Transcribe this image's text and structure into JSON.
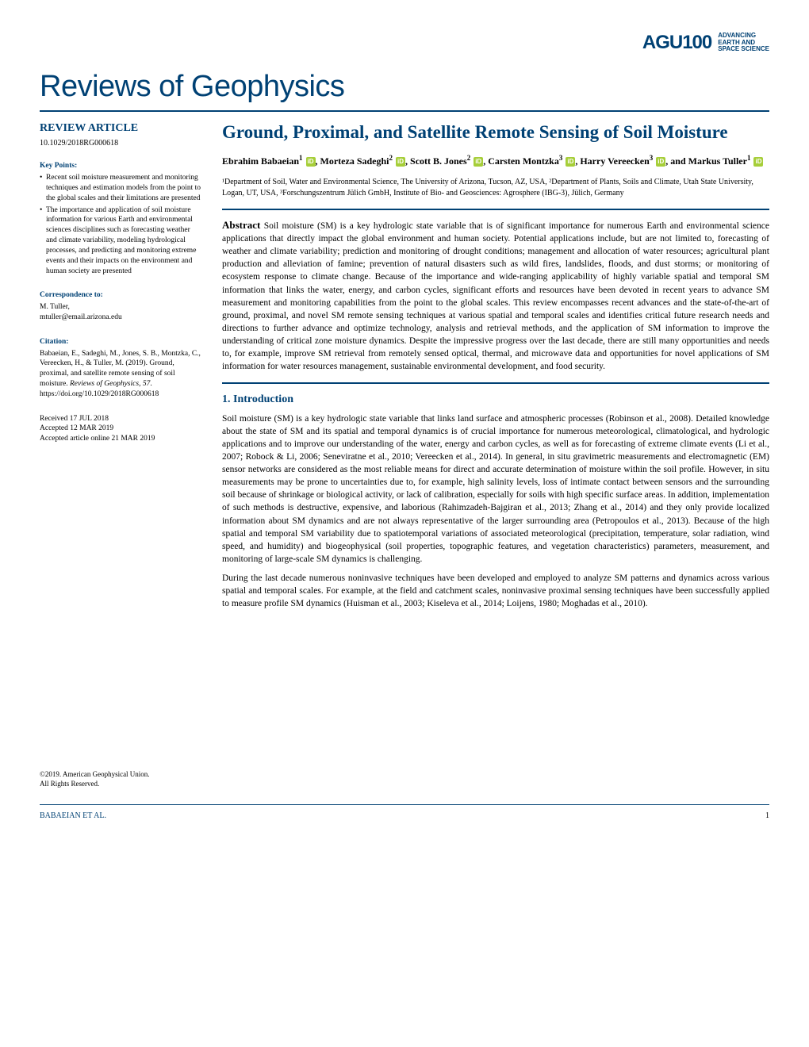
{
  "colors": {
    "primary_blue": "#004174",
    "text_black": "#000000",
    "orcid_green": "#a6ce39",
    "light_rule": "#cccccc"
  },
  "logo": {
    "brand": "AGU100",
    "tagline_line1": "ADVANCING",
    "tagline_line2": "EARTH AND",
    "tagline_line3": "SPACE SCIENCE"
  },
  "journal_title": "Reviews of Geophysics",
  "article_type": "REVIEW ARTICLE",
  "doi": "10.1029/2018RG000618",
  "key_points": {
    "heading": "Key Points:",
    "items": [
      "Recent soil moisture measurement and monitoring techniques and estimation models from the point to the global scales and their limitations are presented",
      "The importance and application of soil moisture information for various Earth and environmental sciences disciplines such as forecasting weather and climate variability, modeling hydrological processes, and predicting and monitoring extreme events and their impacts on the environment and human society are presented"
    ]
  },
  "correspondence": {
    "heading": "Correspondence to:",
    "name": "M. Tuller,",
    "email": "mtuller@email.arizona.edu"
  },
  "citation": {
    "heading": "Citation:",
    "text_part1": "Babaeian, E., Sadeghi, M., Jones, S. B., Montzka, C., Vereecken, H., & Tuller, M. (2019). Ground, proximal, and satellite remote sensing of soil moisture. ",
    "journal_italic": "Reviews of Geophysics",
    "text_part2": ", ",
    "volume_italic": "57",
    "text_part3": ". https://doi.org/10.1029/2018RG000618"
  },
  "dates": {
    "received": "Received 17 JUL 2018",
    "accepted": "Accepted 12 MAR 2019",
    "online": "Accepted article online 21 MAR 2019"
  },
  "copyright": {
    "line1": "©2019. American Geophysical Union.",
    "line2": "All Rights Reserved."
  },
  "article_title": "Ground, Proximal, and Satellite Remote Sensing of Soil Moisture",
  "authors_html": "Ebrahim Babaeian|1|orcid|, Morteza Sadeghi|2|orcid|, Scott B. Jones|2|orcid|, Carsten Montzka|3|orcid|, Harry Vereecken|3|orcid|, and Markus Tuller|1|orcid",
  "authors": [
    {
      "name": "Ebrahim Babaeian",
      "aff": "1",
      "orcid": true,
      "sep": ", "
    },
    {
      "name": "Morteza Sadeghi",
      "aff": "2",
      "orcid": true,
      "sep": ", "
    },
    {
      "name": "Scott B. Jones",
      "aff": "2",
      "orcid": true,
      "sep": ", "
    },
    {
      "name": "Carsten Montzka",
      "aff": "3",
      "orcid": true,
      "sep": ", "
    },
    {
      "name": "Harry Vereecken",
      "aff": "3",
      "orcid": true,
      "sep": ", and "
    },
    {
      "name": "Markus Tuller",
      "aff": "1",
      "orcid": true,
      "sep": ""
    }
  ],
  "affiliations": "¹Department of Soil, Water and Environmental Science, The University of Arizona, Tucson, AZ, USA, ²Department of Plants, Soils and Climate, Utah State University, Logan, UT, USA, ³Forschungszentrum Jülich GmbH, Institute of Bio- and Geosciences: Agrosphere (IBG-3), Jülich, Germany",
  "abstract": {
    "label": "Abstract",
    "text": "Soil moisture (SM) is a key hydrologic state variable that is of significant importance for numerous Earth and environmental science applications that directly impact the global environment and human society. Potential applications include, but are not limited to, forecasting of weather and climate variability; prediction and monitoring of drought conditions; management and allocation of water resources; agricultural plant production and alleviation of famine; prevention of natural disasters such as wild fires, landslides, floods, and dust storms; or monitoring of ecosystem response to climate change. Because of the importance and wide-ranging applicability of highly variable spatial and temporal SM information that links the water, energy, and carbon cycles, significant efforts and resources have been devoted in recent years to advance SM measurement and monitoring capabilities from the point to the global scales. This review encompasses recent advances and the state-of-the-art of ground, proximal, and novel SM remote sensing techniques at various spatial and temporal scales and identifies critical future research needs and directions to further advance and optimize technology, analysis and retrieval methods, and the application of SM information to improve the understanding of critical zone moisture dynamics. Despite the impressive progress over the last decade, there are still many opportunities and needs to, for example, improve SM retrieval from remotely sensed optical, thermal, and microwave data and opportunities for novel applications of SM information for water resources management, sustainable environmental development, and food security."
  },
  "section1": {
    "heading": "1. Introduction",
    "para1": "Soil moisture (SM) is a key hydrologic state variable that links land surface and atmospheric processes (Robinson et al., 2008). Detailed knowledge about the state of SM and its spatial and temporal dynamics is of crucial importance for numerous meteorological, climatological, and hydrologic applications and to improve our understanding of the water, energy and carbon cycles, as well as for forecasting of extreme climate events (Li et al., 2007; Robock & Li, 2006; Seneviratne et al., 2010; Vereecken et al., 2014). In general, in situ gravimetric measurements and electromagnetic (EM) sensor networks are considered as the most reliable means for direct and accurate determination of moisture within the soil profile. However, in situ measurements may be prone to uncertainties due to, for example, high salinity levels, loss of intimate contact between sensors and the surrounding soil because of shrinkage or biological activity, or lack of calibration, especially for soils with high specific surface areas. In addition, implementation of such methods is destructive, expensive, and laborious (Rahimzadeh-Bajgiran et al., 2013; Zhang et al., 2014) and they only provide localized information about SM dynamics and are not always representative of the larger surrounding area (Petropoulos et al., 2013). Because of the high spatial and temporal SM variability due to spatiotemporal variations of associated meteorological (precipitation, temperature, solar radiation, wind speed, and humidity) and biogeophysical (soil properties, topographic features, and vegetation characteristics) parameters, measurement, and monitoring of large-scale SM dynamics is challenging.",
    "para2": "During the last decade numerous noninvasive techniques have been developed and employed to analyze SM patterns and dynamics across various spatial and temporal scales. For example, at the field and catchment scales, noninvasive proximal sensing techniques have been successfully applied to measure profile SM dynamics (Huisman et al., 2003; Kiseleva et al., 2014; Loijens, 1980; Moghadas et al., 2010)."
  },
  "footer": {
    "authors": "BABAEIAN ET AL.",
    "page": "1"
  }
}
